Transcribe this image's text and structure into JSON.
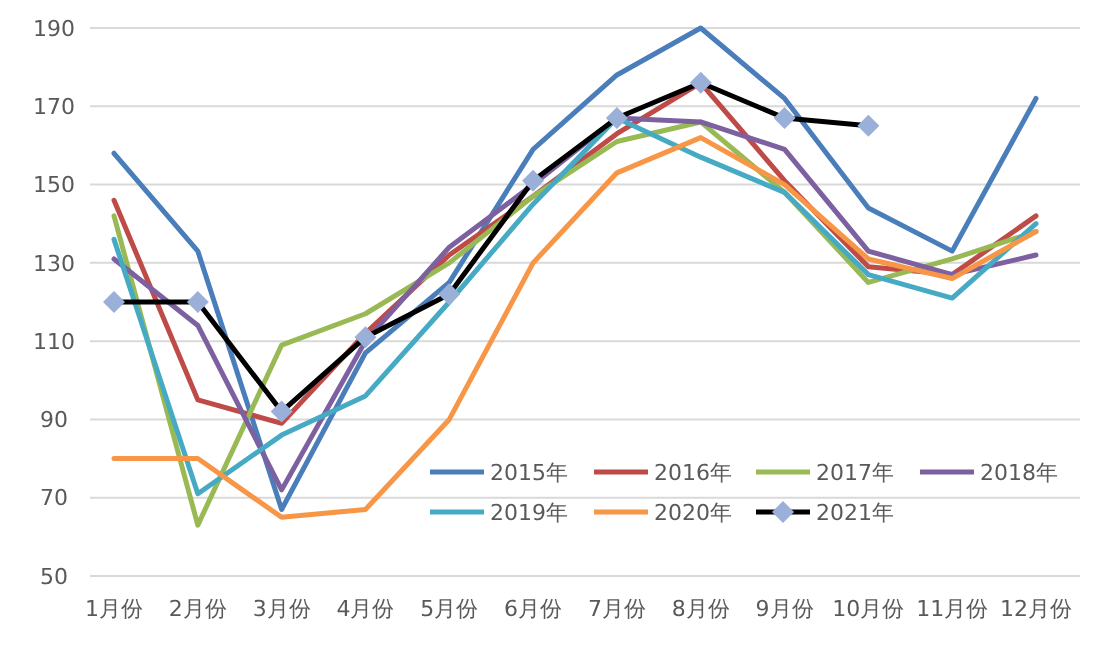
{
  "chart_data": {
    "type": "line",
    "categories": [
      "1月份",
      "2月份",
      "3月份",
      "4月份",
      "5月份",
      "6月份",
      "7月份",
      "8月份",
      "9月份",
      "10月份",
      "11月份",
      "12月份"
    ],
    "ylim": [
      50,
      190
    ],
    "yticks": [
      50,
      70,
      90,
      110,
      130,
      150,
      170,
      190
    ],
    "grid": "y",
    "legend": "bottom",
    "line_style": "solid",
    "series": [
      {
        "name": "2015年",
        "color": "#4a7ebb",
        "values": [
          158,
          133,
          67,
          107,
          125,
          159,
          178,
          190,
          172,
          144,
          133,
          172
        ]
      },
      {
        "name": "2016年",
        "color": "#be4b48",
        "values": [
          146,
          95,
          89,
          112,
          132,
          147,
          163,
          176,
          151,
          129,
          127,
          142
        ]
      },
      {
        "name": "2017年",
        "color": "#98b954",
        "values": [
          142,
          63,
          109,
          117,
          130,
          147,
          161,
          166,
          148,
          125,
          131,
          138
        ]
      },
      {
        "name": "2018年",
        "color": "#7d60a0",
        "values": [
          131,
          114,
          72,
          110,
          134,
          150,
          167,
          166,
          159,
          133,
          127,
          132
        ]
      },
      {
        "name": "2019年",
        "color": "#46aac5",
        "values": [
          136,
          71,
          86,
          96,
          120,
          145,
          167,
          157,
          148,
          127,
          121,
          140
        ]
      },
      {
        "name": "2020年",
        "color": "#f79646",
        "values": [
          80,
          80,
          65,
          67,
          90,
          130,
          153,
          162,
          150,
          131,
          126,
          138
        ]
      },
      {
        "name": "2021年",
        "color": "#000000",
        "marker": "diamond",
        "values": [
          120,
          120,
          92,
          111,
          122,
          151,
          167,
          176,
          167,
          165,
          null,
          null
        ]
      }
    ]
  }
}
